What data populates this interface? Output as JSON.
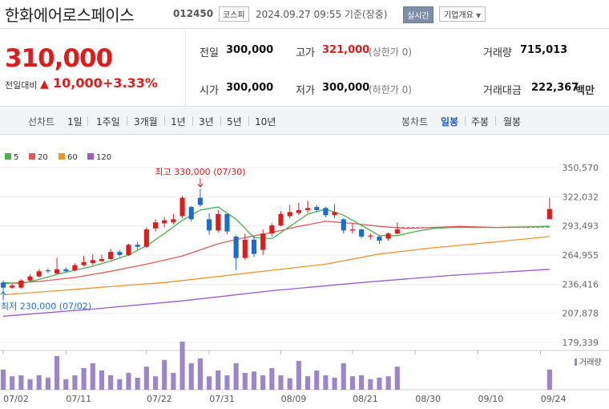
{
  "header": {
    "stock_name": "한화에어로스페이스",
    "stock_code": "012450",
    "market": "코스피",
    "timestamp": "2024.09.27 09:55 기준(장중)",
    "realtime_button": "실시간",
    "company_button": "기업개요"
  },
  "quote": {
    "price": "310,000",
    "prev_label": "전일대비",
    "change": "10,000",
    "change_pct": "+3.33%",
    "prev_close_label": "전일",
    "prev_close": "300,000",
    "high_label": "고가",
    "high": "321,000",
    "upper_limit": "(상한가 0)",
    "volume_label": "거래량",
    "volume": "715,013",
    "open_label": "시가",
    "open": "300,000",
    "low_label": "저가",
    "low": "300,000",
    "lower_limit": "(하한가 0)",
    "amount_label": "거래대금",
    "amount": "222,367",
    "amount_unit": "백만"
  },
  "period_tabs": {
    "line_label": "선차트",
    "line_items": [
      "1일",
      "1주일",
      "3개월",
      "1년",
      "3년",
      "5년",
      "10년"
    ],
    "candle_label": "봉차트",
    "candle_items": [
      "일봉",
      "주봉",
      "월봉"
    ],
    "active": "일봉"
  },
  "colors": {
    "up": "#e01b1b",
    "down": "#1c6fc9",
    "ma5": "#4caf50",
    "ma20": "#e05a5a",
    "ma60": "#f0932b",
    "ma120": "#9b59d0",
    "volume": "#9b86c9"
  },
  "chart_data": {
    "type": "candlestick",
    "legend": [
      "5",
      "20",
      "60",
      "120"
    ],
    "y_ticks": [
      "350,570",
      "322,032",
      "293,493",
      "264,955",
      "236,416",
      "207,878",
      "179,339"
    ],
    "ylim": [
      179339,
      350570
    ],
    "x_labels": [
      {
        "label": "07/02",
        "index": 0
      },
      {
        "label": "07/11",
        "index": 7
      },
      {
        "label": "07/22",
        "index": 16
      },
      {
        "label": "07/31",
        "index": 23
      },
      {
        "label": "08/09",
        "index": 31
      },
      {
        "label": "08/21",
        "index": 39
      },
      {
        "label": "08/30",
        "index": 46
      },
      {
        "label": "09/10",
        "index": 53
      },
      {
        "label": "09/24",
        "index": 60
      }
    ],
    "x_count": 63,
    "annotations": {
      "high_label": "최고 330,000 (07/30)",
      "high_value": 330000,
      "high_index": 22,
      "low_label": "최저 230,000 (07/02)",
      "low_value": 230000,
      "low_index": 0
    },
    "candles": [
      {
        "i": 0,
        "o": 238000,
        "h": 240000,
        "l": 230000,
        "c": 233000
      },
      {
        "i": 1,
        "o": 233000,
        "h": 237000,
        "l": 232000,
        "c": 235000
      },
      {
        "i": 2,
        "o": 233000,
        "h": 241000,
        "l": 232000,
        "c": 240000
      },
      {
        "i": 3,
        "o": 240000,
        "h": 246000,
        "l": 239000,
        "c": 244000
      },
      {
        "i": 4,
        "o": 244000,
        "h": 251000,
        "l": 243000,
        "c": 249000
      },
      {
        "i": 5,
        "o": 250000,
        "h": 252000,
        "l": 247000,
        "c": 249000
      },
      {
        "i": 6,
        "o": 247000,
        "h": 262000,
        "l": 246000,
        "c": 251000
      },
      {
        "i": 7,
        "o": 251000,
        "h": 253000,
        "l": 248000,
        "c": 249000
      },
      {
        "i": 8,
        "o": 250000,
        "h": 257000,
        "l": 249000,
        "c": 255000
      },
      {
        "i": 9,
        "o": 255000,
        "h": 264000,
        "l": 254000,
        "c": 258000
      },
      {
        "i": 10,
        "o": 257000,
        "h": 266000,
        "l": 255000,
        "c": 260000
      },
      {
        "i": 11,
        "o": 259000,
        "h": 265000,
        "l": 258000,
        "c": 261000
      },
      {
        "i": 12,
        "o": 261000,
        "h": 271000,
        "l": 260000,
        "c": 268000
      },
      {
        "i": 13,
        "o": 268000,
        "h": 270000,
        "l": 263000,
        "c": 265000
      },
      {
        "i": 14,
        "o": 265000,
        "h": 276000,
        "l": 264000,
        "c": 275000
      },
      {
        "i": 15,
        "o": 275000,
        "h": 278000,
        "l": 270000,
        "c": 273000
      },
      {
        "i": 16,
        "o": 273000,
        "h": 292000,
        "l": 272000,
        "c": 290000
      },
      {
        "i": 17,
        "o": 291000,
        "h": 300000,
        "l": 288000,
        "c": 297000
      },
      {
        "i": 18,
        "o": 296000,
        "h": 302000,
        "l": 292000,
        "c": 299000
      },
      {
        "i": 19,
        "o": 297000,
        "h": 305000,
        "l": 295000,
        "c": 300000
      },
      {
        "i": 20,
        "o": 303000,
        "h": 323000,
        "l": 301000,
        "c": 321000
      },
      {
        "i": 21,
        "o": 312000,
        "h": 313000,
        "l": 298000,
        "c": 300000
      },
      {
        "i": 22,
        "o": 321000,
        "h": 330000,
        "l": 312000,
        "c": 314000
      },
      {
        "i": 23,
        "o": 300000,
        "h": 306000,
        "l": 285000,
        "c": 289000
      },
      {
        "i": 24,
        "o": 289000,
        "h": 309000,
        "l": 287000,
        "c": 305000
      },
      {
        "i": 25,
        "o": 305000,
        "h": 306000,
        "l": 285000,
        "c": 288000
      },
      {
        "i": 26,
        "o": 283000,
        "h": 284000,
        "l": 250000,
        "c": 262000
      },
      {
        "i": 27,
        "o": 262000,
        "h": 286000,
        "l": 260000,
        "c": 280000
      },
      {
        "i": 28,
        "o": 280000,
        "h": 284000,
        "l": 263000,
        "c": 266000
      },
      {
        "i": 29,
        "o": 270000,
        "h": 290000,
        "l": 265000,
        "c": 286000
      },
      {
        "i": 30,
        "o": 286000,
        "h": 296000,
        "l": 283000,
        "c": 294000
      },
      {
        "i": 31,
        "o": 294000,
        "h": 308000,
        "l": 293000,
        "c": 305000
      },
      {
        "i": 32,
        "o": 303000,
        "h": 314000,
        "l": 301000,
        "c": 307000
      },
      {
        "i": 33,
        "o": 306000,
        "h": 316000,
        "l": 304000,
        "c": 309000
      },
      {
        "i": 34,
        "o": 309000,
        "h": 318000,
        "l": 306000,
        "c": 311000
      },
      {
        "i": 35,
        "o": 312000,
        "h": 314000,
        "l": 307000,
        "c": 309000
      },
      {
        "i": 36,
        "o": 311000,
        "h": 312000,
        "l": 302000,
        "c": 304000
      },
      {
        "i": 37,
        "o": 304000,
        "h": 315000,
        "l": 301000,
        "c": 307000
      },
      {
        "i": 38,
        "o": 300000,
        "h": 301000,
        "l": 286000,
        "c": 289000
      },
      {
        "i": 39,
        "o": 289000,
        "h": 296000,
        "l": 286000,
        "c": 290000
      },
      {
        "i": 40,
        "o": 290000,
        "h": 291000,
        "l": 281000,
        "c": 283000
      },
      {
        "i": 41,
        "o": 283000,
        "h": 286000,
        "l": 280000,
        "c": 284000
      },
      {
        "i": 42,
        "o": 283000,
        "h": 284000,
        "l": 276000,
        "c": 279000
      },
      {
        "i": 43,
        "o": 281000,
        "h": 287000,
        "l": 279000,
        "c": 286000
      },
      {
        "i": 44,
        "o": 286000,
        "h": 297000,
        "l": 285000,
        "c": 290000
      },
      {
        "i": 61,
        "o": 300000,
        "h": 321000,
        "l": 300000,
        "c": 310000
      }
    ],
    "ma5": [
      [
        0,
        238000
      ],
      [
        2,
        237000
      ],
      [
        4,
        241000
      ],
      [
        6,
        246000
      ],
      [
        8,
        250000
      ],
      [
        10,
        254000
      ],
      [
        12,
        259000
      ],
      [
        14,
        265000
      ],
      [
        16,
        274000
      ],
      [
        18,
        286000
      ],
      [
        20,
        299000
      ],
      [
        22,
        309000
      ],
      [
        24,
        312000
      ],
      [
        26,
        300000
      ],
      [
        28,
        282000
      ],
      [
        30,
        281000
      ],
      [
        32,
        293000
      ],
      [
        34,
        305000
      ],
      [
        36,
        310000
      ],
      [
        38,
        304000
      ],
      [
        40,
        294000
      ],
      [
        42,
        284000
      ],
      [
        44,
        284000
      ],
      [
        46,
        288000
      ],
      [
        48,
        291000
      ],
      [
        50,
        292000
      ],
      [
        52,
        292000
      ],
      [
        56,
        292000
      ],
      [
        61,
        293000
      ]
    ],
    "ma20": [
      [
        0,
        237000
      ],
      [
        4,
        239000
      ],
      [
        8,
        243000
      ],
      [
        12,
        249000
      ],
      [
        16,
        256000
      ],
      [
        20,
        264000
      ],
      [
        24,
        276000
      ],
      [
        27,
        282000
      ],
      [
        30,
        287000
      ],
      [
        33,
        293000
      ],
      [
        36,
        298000
      ],
      [
        39,
        296000
      ],
      [
        42,
        293000
      ],
      [
        45,
        291000
      ],
      [
        48,
        292000
      ],
      [
        51,
        293000
      ],
      [
        55,
        292000
      ],
      [
        61,
        293000
      ]
    ],
    "ma60": [
      [
        0,
        226000
      ],
      [
        6,
        230000
      ],
      [
        12,
        234000
      ],
      [
        18,
        238000
      ],
      [
        24,
        244000
      ],
      [
        30,
        250000
      ],
      [
        36,
        256000
      ],
      [
        42,
        266000
      ],
      [
        48,
        272000
      ],
      [
        54,
        277000
      ],
      [
        61,
        283000
      ]
    ],
    "ma120": [
      [
        0,
        205000
      ],
      [
        10,
        212000
      ],
      [
        20,
        220000
      ],
      [
        30,
        230000
      ],
      [
        40,
        238000
      ],
      [
        50,
        245000
      ],
      [
        61,
        251000
      ]
    ],
    "volume_label": "거래량",
    "volume": [
      {
        "i": 0,
        "v": 42
      },
      {
        "i": 1,
        "v": 28
      },
      {
        "i": 2,
        "v": 30
      },
      {
        "i": 3,
        "v": 22
      },
      {
        "i": 4,
        "v": 30
      },
      {
        "i": 5,
        "v": 25
      },
      {
        "i": 6,
        "v": 70
      },
      {
        "i": 7,
        "v": 22
      },
      {
        "i": 8,
        "v": 30
      },
      {
        "i": 9,
        "v": 45
      },
      {
        "i": 10,
        "v": 55
      },
      {
        "i": 11,
        "v": 40
      },
      {
        "i": 12,
        "v": 30
      },
      {
        "i": 13,
        "v": 22
      },
      {
        "i": 14,
        "v": 35
      },
      {
        "i": 15,
        "v": 25
      },
      {
        "i": 16,
        "v": 48
      },
      {
        "i": 17,
        "v": 28
      },
      {
        "i": 18,
        "v": 62
      },
      {
        "i": 19,
        "v": 35
      },
      {
        "i": 20,
        "v": 100
      },
      {
        "i": 21,
        "v": 55
      },
      {
        "i": 22,
        "v": 65
      },
      {
        "i": 23,
        "v": 28
      },
      {
        "i": 24,
        "v": 40
      },
      {
        "i": 25,
        "v": 30
      },
      {
        "i": 26,
        "v": 55
      },
      {
        "i": 27,
        "v": 35
      },
      {
        "i": 28,
        "v": 38
      },
      {
        "i": 29,
        "v": 30
      },
      {
        "i": 30,
        "v": 45
      },
      {
        "i": 31,
        "v": 30
      },
      {
        "i": 32,
        "v": 24
      },
      {
        "i": 33,
        "v": 60
      },
      {
        "i": 34,
        "v": 28
      },
      {
        "i": 35,
        "v": 40
      },
      {
        "i": 36,
        "v": 30
      },
      {
        "i": 37,
        "v": 25
      },
      {
        "i": 38,
        "v": 55
      },
      {
        "i": 39,
        "v": 28
      },
      {
        "i": 40,
        "v": 30
      },
      {
        "i": 41,
        "v": 22
      },
      {
        "i": 42,
        "v": 25
      },
      {
        "i": 43,
        "v": 28
      },
      {
        "i": 44,
        "v": 48
      },
      {
        "i": 61,
        "v": 42
      }
    ]
  }
}
